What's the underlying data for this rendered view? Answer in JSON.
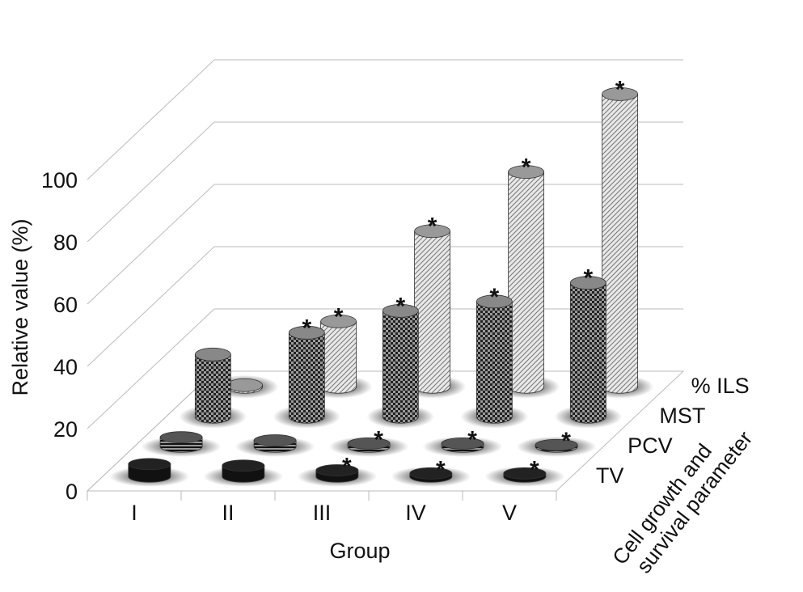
{
  "chart_data": {
    "type": "bar",
    "subtype": "3d-cylinder",
    "title": "",
    "xlabel": "Group",
    "ylabel": "Relative value (%)",
    "zlabel": "Cell growth and survival parameter",
    "ylim": [
      0,
      100
    ],
    "yticks": [
      "0",
      "20",
      "40",
      "60",
      "80",
      "100"
    ],
    "categories": [
      "I",
      "II",
      "III",
      "IV",
      "V"
    ],
    "series": [
      {
        "name": "TV",
        "values": [
          4,
          3.5,
          2,
          1,
          1
        ],
        "significant": [
          false,
          false,
          true,
          true,
          true
        ],
        "color": "#111111"
      },
      {
        "name": "PCV",
        "values": [
          3,
          2,
          1,
          1,
          0.5
        ],
        "significant": [
          false,
          false,
          true,
          true,
          true
        ],
        "color": "#333333"
      },
      {
        "name": "MST",
        "values": [
          20,
          27,
          34,
          37,
          43
        ],
        "significant": [
          false,
          true,
          true,
          true,
          true
        ],
        "color": "#555555"
      },
      {
        "name": "% ILS",
        "values": [
          0,
          21,
          50,
          69,
          94
        ],
        "significant": [
          false,
          true,
          true,
          true,
          true
        ],
        "color": "#bbbbbb"
      }
    ],
    "annotation": "*",
    "grid": true
  }
}
